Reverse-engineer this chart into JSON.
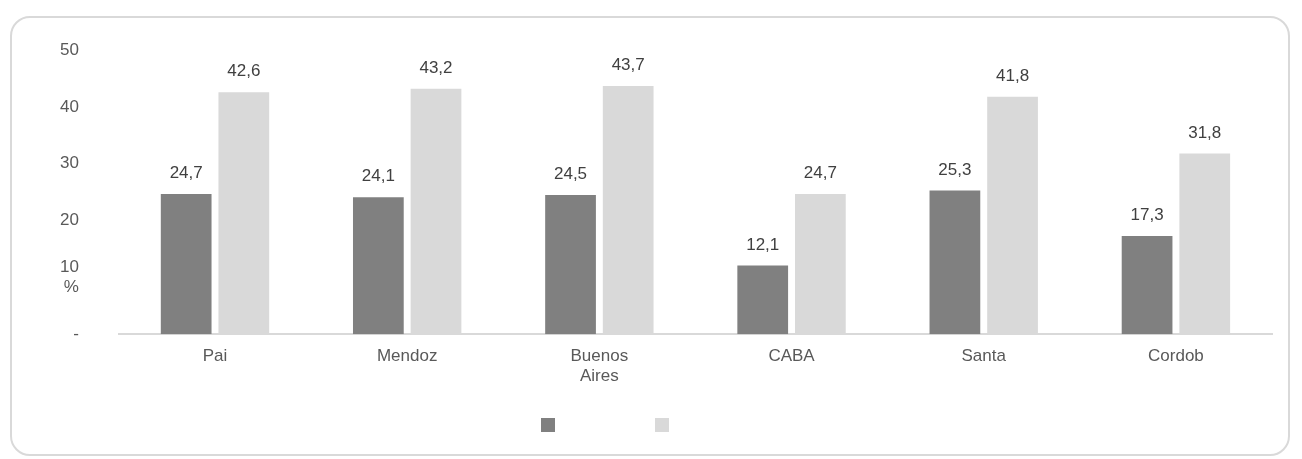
{
  "chart_data": {
    "type": "bar",
    "categories": [
      "Pai",
      "Mendoz",
      "Buenos Aires",
      "CABA",
      "Santa",
      "Cordob"
    ],
    "series": [
      {
        "color": "#808080",
        "values": [
          24.7,
          24.1,
          24.5,
          12.1,
          25.3,
          17.3
        ],
        "value_labels": [
          "24,7",
          "24,1",
          "24,5",
          "12,1",
          "25,3",
          "17,3"
        ]
      },
      {
        "color": "#d9d9d9",
        "values": [
          42.6,
          43.2,
          43.7,
          24.7,
          41.8,
          31.8
        ],
        "value_labels": [
          "42,6",
          "43,2",
          "43,7",
          "24,7",
          "41,8",
          "31,8"
        ]
      }
    ],
    "ylim": [
      0,
      50
    ],
    "yticks": [
      {
        "value": 0,
        "label": "-"
      },
      {
        "value": 10,
        "label": "10 %"
      },
      20,
      30,
      40,
      50
    ],
    "grid": false
  }
}
